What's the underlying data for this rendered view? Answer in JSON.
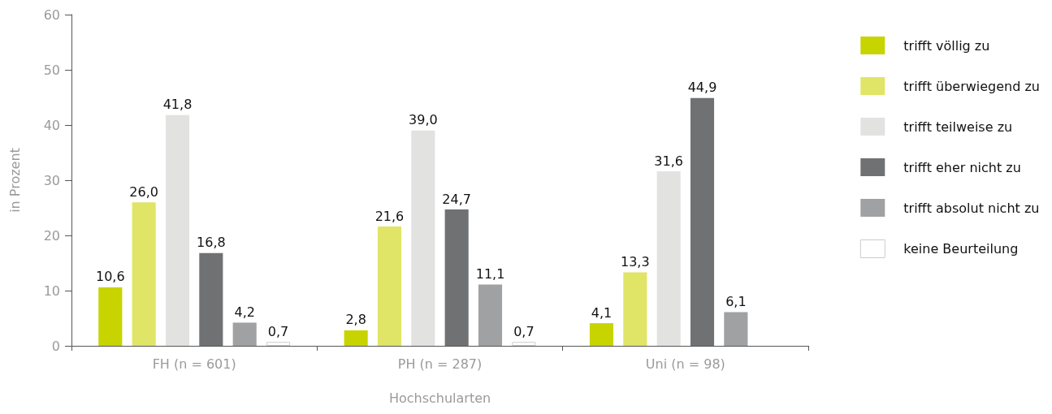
{
  "chart_data": {
    "type": "bar",
    "xlabel": "Hochschularten",
    "ylabel": "in Prozent",
    "categories": [
      "FH (n = 601)",
      "PH (n = 287)",
      "Uni (n = 98)"
    ],
    "series": [
      {
        "name": "trifft völlig zu",
        "color": "#c8d400",
        "values": [
          10.6,
          2.8,
          4.1
        ],
        "value_labels": [
          "10,6",
          "2,8",
          "4,1"
        ]
      },
      {
        "name": "trifft überwiegend zu",
        "color": "#e0e567",
        "values": [
          26.0,
          21.6,
          13.3
        ],
        "value_labels": [
          "26,0",
          "21,6",
          "13,3"
        ]
      },
      {
        "name": "trifft teilweise zu",
        "color": "#e2e3e1",
        "values": [
          41.8,
          39.0,
          31.6
        ],
        "value_labels": [
          "41,8",
          "39,0",
          "31,6"
        ]
      },
      {
        "name": "trifft eher nicht zu",
        "color": "#707173",
        "values": [
          16.8,
          24.7,
          44.9
        ],
        "value_labels": [
          "16,8",
          "24,7",
          "44,9"
        ]
      },
      {
        "name": "trifft absolut nicht zu",
        "color": "#a0a1a3",
        "values": [
          4.2,
          11.1,
          6.1
        ],
        "value_labels": [
          "4,2",
          "11,1",
          "6,1"
        ]
      },
      {
        "name": "keine Beurteilung",
        "color": "#ffffff",
        "values": [
          0.7,
          0.7,
          null
        ],
        "value_labels": [
          "0,7",
          "0,7",
          null
        ]
      }
    ],
    "ylim": [
      0,
      60
    ],
    "yticks": [
      0,
      10,
      20,
      30,
      40,
      50,
      60
    ],
    "grid": false,
    "legend": "right"
  }
}
